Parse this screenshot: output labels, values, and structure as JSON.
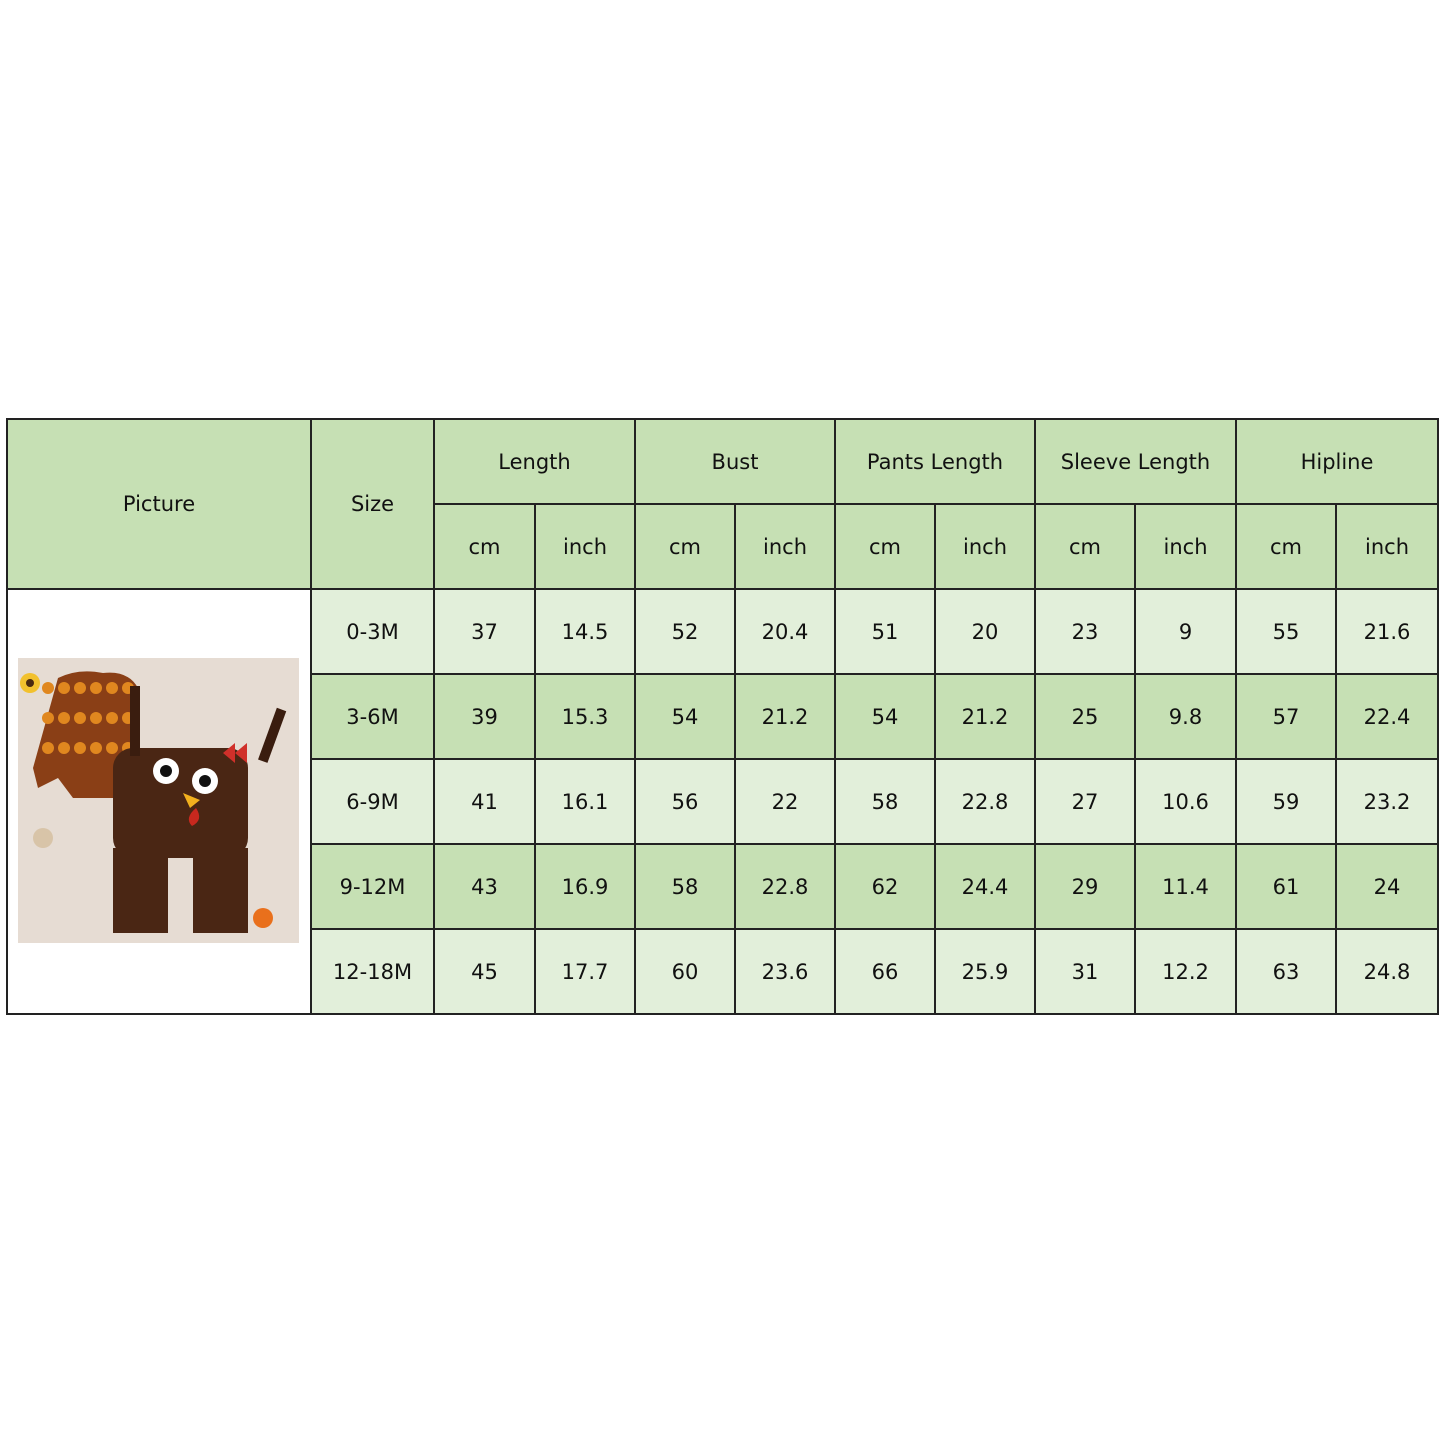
{
  "table": {
    "headers": {
      "picture": "Picture",
      "size": "Size",
      "groups": [
        "Length",
        "Bust",
        "Pants Length",
        "Sleeve Length",
        "Hipline"
      ],
      "units": [
        "cm",
        "inch"
      ]
    },
    "rows": [
      {
        "size": "0-3M",
        "values": [
          "37",
          "14.5",
          "52",
          "20.4",
          "51",
          "20",
          "23",
          "9",
          "55",
          "21.6"
        ]
      },
      {
        "size": "3-6M",
        "values": [
          "39",
          "15.3",
          "54",
          "21.2",
          "54",
          "21.2",
          "25",
          "9.8",
          "57",
          "22.4"
        ]
      },
      {
        "size": "6-9M",
        "values": [
          "41",
          "16.1",
          "56",
          "22",
          "58",
          "22.8",
          "27",
          "10.6",
          "59",
          "23.2"
        ]
      },
      {
        "size": "9-12M",
        "values": [
          "43",
          "16.9",
          "58",
          "22.8",
          "62",
          "24.4",
          "29",
          "11.4",
          "61",
          "24"
        ]
      },
      {
        "size": "12-18M",
        "values": [
          "45",
          "17.7",
          "60",
          "23.6",
          "66",
          "25.9",
          "31",
          "12.2",
          "63",
          "24.8"
        ]
      }
    ]
  },
  "colors": {
    "header": "#c6e0b4",
    "row_light": "#e2efda",
    "row_dark": "#c6e0b4",
    "border": "#222222"
  }
}
